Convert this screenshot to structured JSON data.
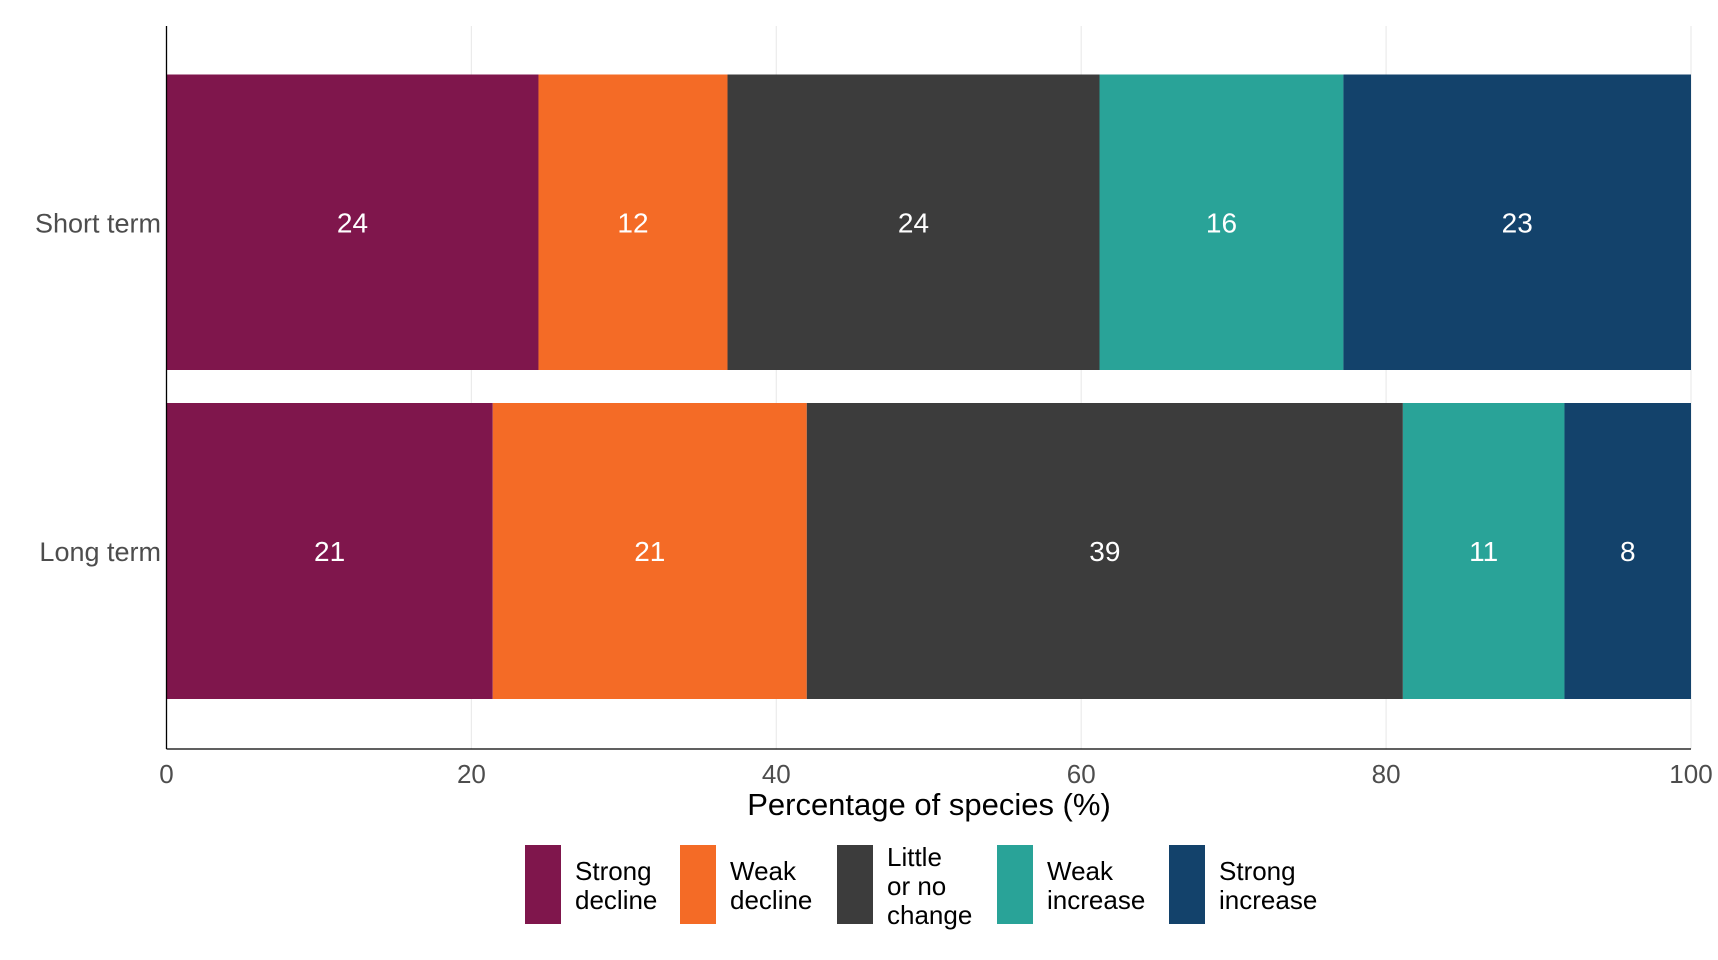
{
  "chart_data": {
    "type": "bar",
    "orientation": "horizontal",
    "stacked": true,
    "title": "",
    "xlabel": "Percentage of species (%)",
    "ylabel": "",
    "xlim": [
      0,
      100
    ],
    "xticks": [
      "0",
      "20",
      "40",
      "60",
      "80",
      "100"
    ],
    "grid": "vertical major lines, light",
    "legend_position": "bottom",
    "categories": [
      "Short term",
      "Long term"
    ],
    "series": [
      {
        "name": "Strong decline",
        "color": "#7f164c",
        "values": [
          24.4,
          21.4
        ],
        "labels": [
          "24",
          "21"
        ]
      },
      {
        "name": "Weak decline",
        "color": "#f46b26",
        "values": [
          12.4,
          20.6
        ],
        "labels": [
          "12",
          "21"
        ]
      },
      {
        "name": "Little or no change",
        "color": "#3c3c3c",
        "values": [
          24.4,
          39.1
        ],
        "labels": [
          "24",
          "39"
        ]
      },
      {
        "name": "Weak increase",
        "color": "#29a398",
        "values": [
          16.0,
          10.6
        ],
        "labels": [
          "16",
          "11"
        ]
      },
      {
        "name": "Strong increase",
        "color": "#13426b",
        "values": [
          22.8,
          8.3
        ],
        "labels": [
          "23",
          "8"
        ]
      }
    ],
    "legend_lines": [
      [
        "Strong",
        "decline"
      ],
      [
        "Weak",
        "decline"
      ],
      [
        "Little",
        "or no",
        "change"
      ],
      [
        "Weak",
        "increase"
      ],
      [
        "Strong",
        "increase"
      ]
    ]
  }
}
